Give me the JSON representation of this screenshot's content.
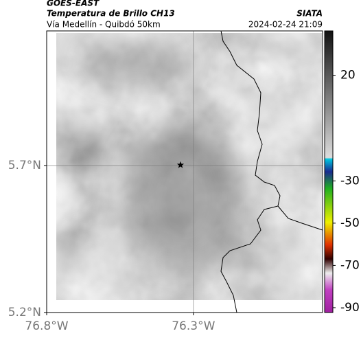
{
  "header": {
    "title": "GOES-EAST",
    "subtitle": "Temperatura de Brillo CH13",
    "region": "Vía Medellín - Quibdó 50km",
    "source": "SIATA",
    "datetime": "2024-02-24 21:09"
  },
  "map": {
    "latlim": [
      5.2,
      6.158
    ],
    "lonlim": [
      -76.8,
      -75.86
    ],
    "lat_ticks": [
      {
        "value": 5.7,
        "label": "5.7°N"
      },
      {
        "value": 5.2,
        "label": "5.2°N"
      }
    ],
    "lon_ticks": [
      {
        "value": -76.8,
        "label": "76.8°W"
      },
      {
        "value": -76.3,
        "label": "76.3°W"
      }
    ],
    "marker": {
      "lon": -76.344,
      "lat": 5.702
    }
  },
  "colorbar": {
    "lim": [
      -92.3,
      41
    ],
    "ticks": [
      20,
      -30,
      -50,
      -70,
      -90
    ]
  }
}
